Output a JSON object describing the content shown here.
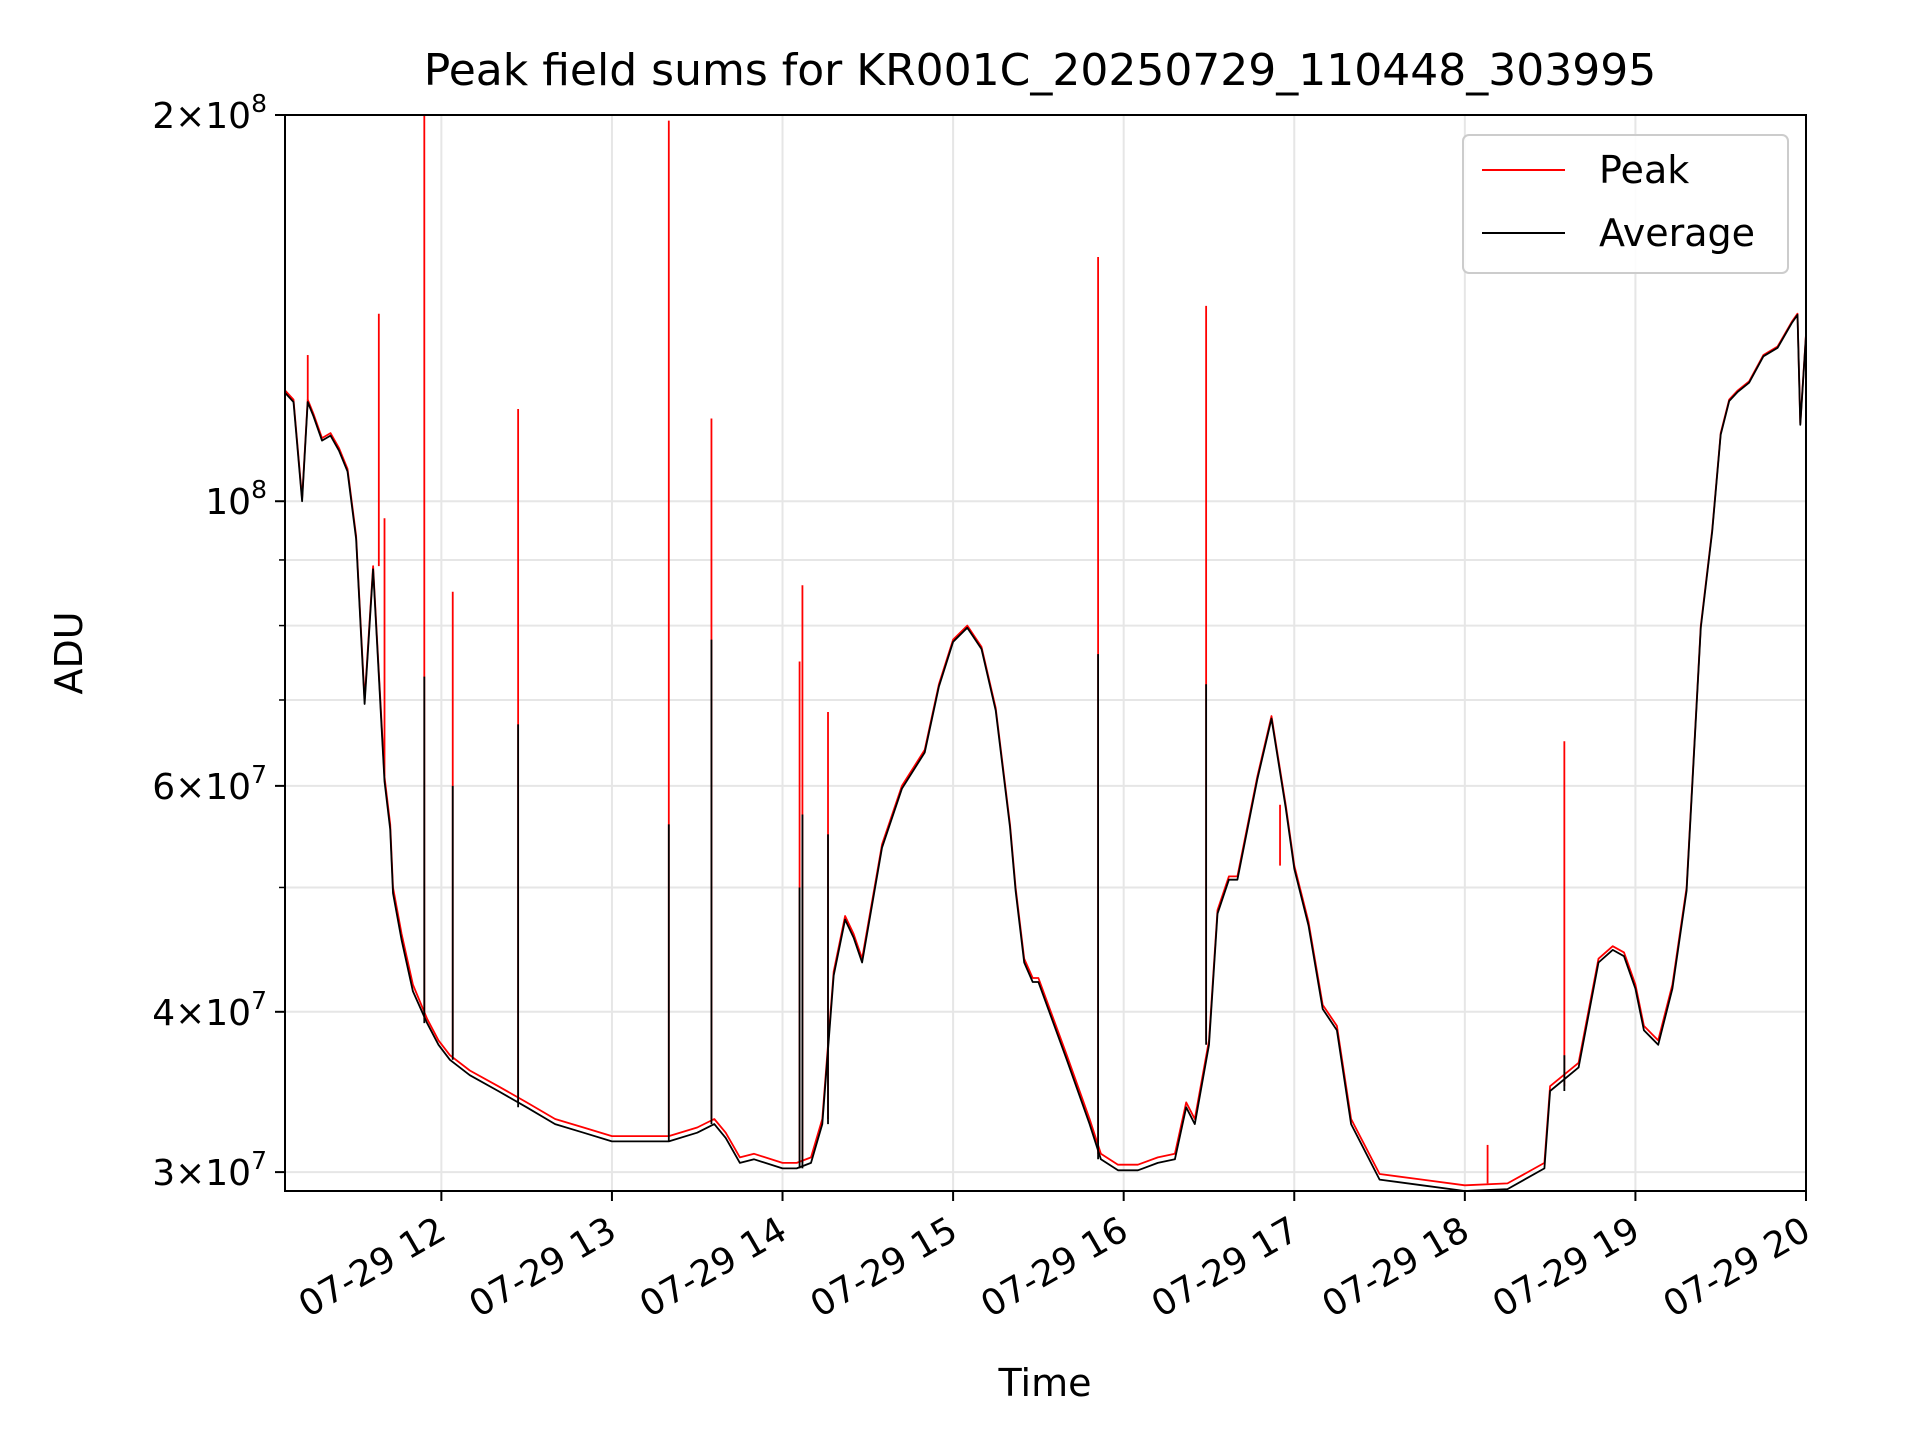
{
  "chart_data": {
    "type": "line",
    "title": "Peak field sums for KR001C_20250729_110448_303995",
    "xlabel": "Time",
    "ylabel": "ADU",
    "y_scale": "log",
    "xlim": [
      "07-29 11:05",
      "07-29 20:00"
    ],
    "ylim": [
      29000000,
      200000000
    ],
    "grid": true,
    "legend_position": "upper right",
    "x_ticks": [
      "07-29 12",
      "07-29 13",
      "07-29 14",
      "07-29 15",
      "07-29 16",
      "07-29 17",
      "07-29 18",
      "07-29 19",
      "07-29 20"
    ],
    "y_major_ticks": [
      {
        "value": 30000000,
        "mantissa": "3",
        "exp": "7"
      },
      {
        "value": 40000000,
        "mantissa": "4",
        "exp": "7"
      },
      {
        "value": 60000000,
        "mantissa": "6",
        "exp": "7"
      },
      {
        "value": 100000000,
        "mantissa": "",
        "exp": "8"
      },
      {
        "value": 200000000,
        "mantissa": "2",
        "exp": "8"
      }
    ],
    "y_minor_ticks": [
      50000000,
      70000000,
      80000000,
      90000000
    ],
    "series": [
      {
        "name": "Peak",
        "color": "#ff0000",
        "x": [
          "07-29 11:05",
          "07-29 11:08",
          "07-29 11:11",
          "07-29 11:13",
          "07-29 11:15",
          "07-29 11:18",
          "07-29 11:21",
          "07-29 11:24",
          "07-29 11:27",
          "07-29 11:30",
          "07-29 11:33",
          "07-29 11:36",
          "07-29 11:40",
          "07-29 11:42",
          "07-29 11:43",
          "07-29 11:46",
          "07-29 11:50",
          "07-29 11:55",
          "07-29 11:59",
          "07-29 12:03",
          "07-29 12:10",
          "07-29 12:20",
          "07-29 12:30",
          "07-29 12:40",
          "07-29 12:50",
          "07-29 13:00",
          "07-29 13:10",
          "07-29 13:20",
          "07-29 13:30",
          "07-29 13:36",
          "07-29 13:40",
          "07-29 13:45",
          "07-29 13:50",
          "07-29 14:00",
          "07-29 14:05",
          "07-29 14:10",
          "07-29 14:14",
          "07-29 14:18",
          "07-29 14:22",
          "07-29 14:25",
          "07-29 14:28",
          "07-29 14:35",
          "07-29 14:42",
          "07-29 14:50",
          "07-29 14:55",
          "07-29 15:00",
          "07-29 15:05",
          "07-29 15:10",
          "07-29 15:15",
          "07-29 15:20",
          "07-29 15:22",
          "07-29 15:25",
          "07-29 15:28",
          "07-29 15:30",
          "07-29 15:40",
          "07-29 15:48",
          "07-29 15:52",
          "07-29 15:58",
          "07-29 16:05",
          "07-29 16:12",
          "07-29 16:18",
          "07-29 16:22",
          "07-29 16:25",
          "07-29 16:30",
          "07-29 16:33",
          "07-29 16:37",
          "07-29 16:40",
          "07-29 16:47",
          "07-29 16:52",
          "07-29 16:57",
          "07-29 17:00",
          "07-29 17:05",
          "07-29 17:10",
          "07-29 17:15",
          "07-29 17:20",
          "07-29 17:30",
          "07-29 17:45",
          "07-29 18:00",
          "07-29 18:15",
          "07-29 18:28",
          "07-29 18:30",
          "07-29 18:40",
          "07-29 18:47",
          "07-29 18:52",
          "07-29 18:56",
          "07-29 19:00",
          "07-29 19:03",
          "07-29 19:08",
          "07-29 19:13",
          "07-29 19:18",
          "07-29 19:23",
          "07-29 19:27",
          "07-29 19:30",
          "07-29 19:33",
          "07-29 19:36",
          "07-29 19:40",
          "07-29 19:45",
          "07-29 19:50",
          "07-29 19:55",
          "07-29 19:57",
          "07-29 19:58",
          "07-29 20:00"
        ],
        "y": [
          122000000,
          120000000,
          100500000,
          120000000,
          117000000,
          112000000,
          113000000,
          110000000,
          106000000,
          94000000,
          70000000,
          89000000,
          61000000,
          56000000,
          50000000,
          46000000,
          42000000,
          39500000,
          38000000,
          37000000,
          36000000,
          35000000,
          34000000,
          33000000,
          32500000,
          32000000,
          32000000,
          32000000,
          32500000,
          33000000,
          32200000,
          30800000,
          31000000,
          30500000,
          30500000,
          30800000,
          33000000,
          43000000,
          47500000,
          46000000,
          44000000,
          54000000,
          60000000,
          64000000,
          72000000,
          78000000,
          80000000,
          77000000,
          69000000,
          56000000,
          50000000,
          44000000,
          42500000,
          42500000,
          37000000,
          33000000,
          31000000,
          30400000,
          30400000,
          30800000,
          31000000,
          34000000,
          33000000,
          38000000,
          48000000,
          51000000,
          51000000,
          61000000,
          68000000,
          58000000,
          52000000,
          47000000,
          40500000,
          39000000,
          33000000,
          29900000,
          29600000,
          29300000,
          29400000,
          30500000,
          35000000,
          36500000,
          44000000,
          45000000,
          44500000,
          42000000,
          39000000,
          38000000,
          42000000,
          50000000,
          80000000,
          95000000,
          113000000,
          120000000,
          122000000,
          124000000,
          130000000,
          132000000,
          138000000,
          140000000,
          115000000,
          135000000
        ],
        "spikes": [
          {
            "x": "07-29 11:13",
            "peak": 130000000
          },
          {
            "x": "07-29 11:38",
            "peak": 140000000
          },
          {
            "x": "07-29 11:40",
            "peak": 97000000
          },
          {
            "x": "07-29 11:54",
            "peak": 205000000
          },
          {
            "x": "07-29 12:04",
            "peak": 85000000
          },
          {
            "x": "07-29 12:27",
            "peak": 118000000
          },
          {
            "x": "07-29 13:20",
            "peak": 198000000
          },
          {
            "x": "07-29 13:35",
            "peak": 116000000
          },
          {
            "x": "07-29 14:06",
            "peak": 75000000
          },
          {
            "x": "07-29 14:07",
            "peak": 86000000
          },
          {
            "x": "07-29 14:16",
            "peak": 68500000
          },
          {
            "x": "07-29 15:51",
            "peak": 155000000
          },
          {
            "x": "07-29 16:29",
            "peak": 142000000
          },
          {
            "x": "07-29 16:55",
            "peak": 52000000
          },
          {
            "x": "07-29 18:08",
            "peak": 31500000
          },
          {
            "x": "07-29 18:35",
            "peak": 65000000
          }
        ]
      },
      {
        "name": "Average",
        "color": "#000000",
        "x": [
          "07-29 11:05",
          "07-29 11:08",
          "07-29 11:11",
          "07-29 11:13",
          "07-29 11:15",
          "07-29 11:18",
          "07-29 11:21",
          "07-29 11:24",
          "07-29 11:27",
          "07-29 11:30",
          "07-29 11:33",
          "07-29 11:36",
          "07-29 11:40",
          "07-29 11:42",
          "07-29 11:43",
          "07-29 11:46",
          "07-29 11:50",
          "07-29 11:55",
          "07-29 11:59",
          "07-29 12:03",
          "07-29 12:10",
          "07-29 12:20",
          "07-29 12:30",
          "07-29 12:40",
          "07-29 12:50",
          "07-29 13:00",
          "07-29 13:10",
          "07-29 13:20",
          "07-29 13:30",
          "07-29 13:36",
          "07-29 13:40",
          "07-29 13:45",
          "07-29 13:50",
          "07-29 14:00",
          "07-29 14:05",
          "07-29 14:10",
          "07-29 14:14",
          "07-29 14:18",
          "07-29 14:22",
          "07-29 14:25",
          "07-29 14:28",
          "07-29 14:35",
          "07-29 14:42",
          "07-29 14:50",
          "07-29 14:55",
          "07-29 15:00",
          "07-29 15:05",
          "07-29 15:10",
          "07-29 15:15",
          "07-29 15:20",
          "07-29 15:22",
          "07-29 15:25",
          "07-29 15:28",
          "07-29 15:30",
          "07-29 15:40",
          "07-29 15:48",
          "07-29 15:52",
          "07-29 15:58",
          "07-29 16:05",
          "07-29 16:12",
          "07-29 16:18",
          "07-29 16:22",
          "07-29 16:25",
          "07-29 16:30",
          "07-29 16:33",
          "07-29 16:37",
          "07-29 16:40",
          "07-29 16:47",
          "07-29 16:52",
          "07-29 16:57",
          "07-29 17:00",
          "07-29 17:05",
          "07-29 17:10",
          "07-29 17:15",
          "07-29 17:20",
          "07-29 17:30",
          "07-29 17:45",
          "07-29 18:00",
          "07-29 18:15",
          "07-29 18:28",
          "07-29 18:30",
          "07-29 18:40",
          "07-29 18:47",
          "07-29 18:52",
          "07-29 18:56",
          "07-29 19:00",
          "07-29 19:03",
          "07-29 19:08",
          "07-29 19:13",
          "07-29 19:18",
          "07-29 19:23",
          "07-29 19:27",
          "07-29 19:30",
          "07-29 19:33",
          "07-29 19:36",
          "07-29 19:40",
          "07-29 19:45",
          "07-29 19:50",
          "07-29 19:55",
          "07-29 19:57",
          "07-29 19:58",
          "07-29 20:00"
        ],
        "y": [
          121500000,
          119500000,
          100000000,
          119500000,
          116500000,
          111500000,
          112500000,
          109500000,
          105500000,
          93500000,
          69500000,
          88500000,
          60500000,
          55500000,
          49500000,
          45500000,
          41500000,
          39200000,
          37700000,
          36700000,
          35700000,
          34700000,
          33700000,
          32700000,
          32200000,
          31700000,
          31700000,
          31700000,
          32200000,
          32700000,
          31900000,
          30500000,
          30700000,
          30200000,
          30200000,
          30500000,
          32700000,
          42700000,
          47200000,
          45700000,
          43700000,
          53700000,
          59700000,
          63700000,
          71700000,
          77700000,
          79700000,
          76700000,
          68700000,
          55700000,
          49700000,
          43700000,
          42200000,
          42200000,
          36700000,
          32700000,
          30700000,
          30100000,
          30100000,
          30500000,
          30700000,
          33700000,
          32700000,
          37700000,
          47700000,
          50700000,
          50700000,
          60700000,
          67700000,
          57700000,
          51700000,
          46700000,
          40200000,
          38700000,
          32700000,
          29600000,
          29300000,
          29000000,
          29100000,
          30200000,
          34700000,
          36200000,
          43700000,
          44700000,
          44200000,
          41700000,
          38700000,
          37700000,
          41700000,
          49700000,
          79700000,
          94700000,
          112700000,
          119700000,
          121700000,
          123700000,
          129700000,
          131700000,
          137700000,
          139700000,
          114700000,
          134700000
        ],
        "spikes": [
          {
            "x": "07-29 11:54",
            "peak": 73000000
          },
          {
            "x": "07-29 12:04",
            "peak": 60000000
          },
          {
            "x": "07-29 12:27",
            "peak": 67000000
          },
          {
            "x": "07-29 13:20",
            "peak": 56000000
          },
          {
            "x": "07-29 13:35",
            "peak": 78000000
          },
          {
            "x": "07-29 14:06",
            "peak": 50000000
          },
          {
            "x": "07-29 14:07",
            "peak": 57000000
          },
          {
            "x": "07-29 14:16",
            "peak": 55000000
          },
          {
            "x": "07-29 15:51",
            "peak": 76000000
          },
          {
            "x": "07-29 16:29",
            "peak": 72000000
          },
          {
            "x": "07-29 18:35",
            "peak": 37000000
          }
        ]
      }
    ]
  }
}
